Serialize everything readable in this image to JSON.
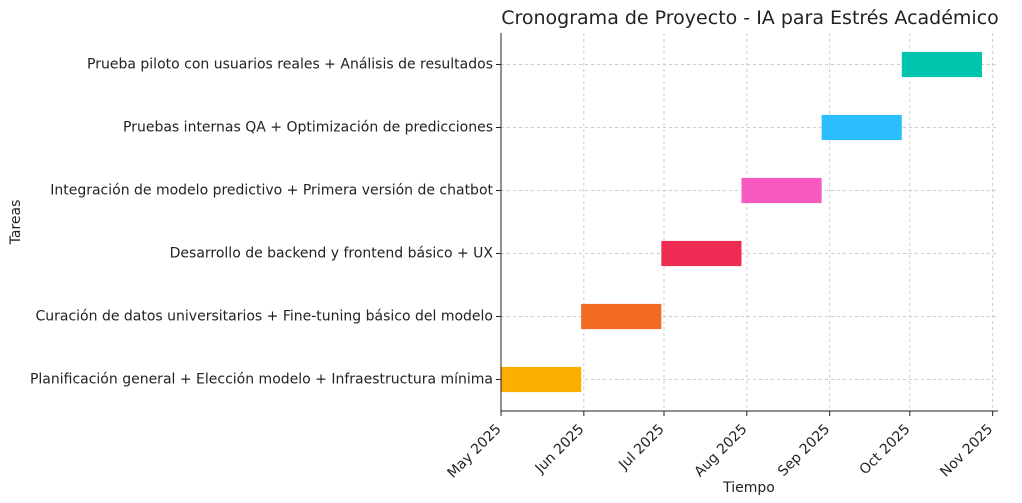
{
  "chart_data": {
    "type": "gantt",
    "title": "Cronograma de Proyecto - IA para Estrés Académico",
    "xlabel": "Tiempo",
    "ylabel": "Tareas",
    "grid": true,
    "x_axis": {
      "type": "date",
      "min": "2025-05-01",
      "max": "2025-11-03",
      "ticks": [
        "2025-05-01",
        "2025-06-01",
        "2025-07-01",
        "2025-08-01",
        "2025-09-01",
        "2025-10-01",
        "2025-11-01"
      ],
      "tick_labels": [
        "May 2025",
        "Jun 2025",
        "Jul 2025",
        "Aug 2025",
        "Sep 2025",
        "Oct 2025",
        "Nov 2025"
      ]
    },
    "tasks": [
      {
        "name": "Planificación general + Elección modelo + Infraestructura mínima",
        "start": "2025-05-01",
        "end": "2025-05-31",
        "color": "#FBAE00"
      },
      {
        "name": "Curación de datos universitarios + Fine-tuning básico del modelo",
        "start": "2025-05-31",
        "end": "2025-06-30",
        "color": "#F36B21"
      },
      {
        "name": "Desarrollo de backend y frontend básico + UX",
        "start": "2025-06-30",
        "end": "2025-07-30",
        "color": "#EE2B52"
      },
      {
        "name": "Integración de modelo predictivo + Primera versión de chatbot",
        "start": "2025-07-30",
        "end": "2025-08-29",
        "color": "#F65ABE"
      },
      {
        "name": "Pruebas internas QA + Optimización de predicciones",
        "start": "2025-08-29",
        "end": "2025-09-28",
        "color": "#2CBDFC"
      },
      {
        "name": "Prueba piloto con usuarios reales + Análisis de resultados",
        "start": "2025-09-28",
        "end": "2025-10-28",
        "color": "#00C5AE"
      }
    ]
  }
}
